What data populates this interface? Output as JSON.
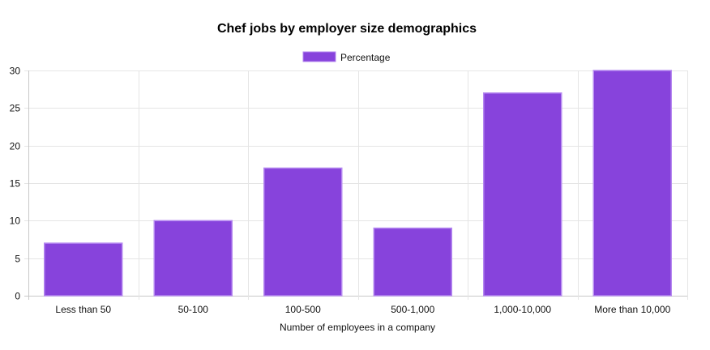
{
  "chart_data": {
    "type": "bar",
    "title": "Chef jobs by employer size demographics",
    "xlabel": "Number of employees in a company",
    "ylabel": "",
    "categories": [
      "Less than 50",
      "50-100",
      "100-500",
      "500-1,000",
      "1,000-10,000",
      "More than 10,000"
    ],
    "series": [
      {
        "name": "Percentage",
        "values": [
          7,
          10,
          17,
          9,
          27,
          30
        ],
        "color": "#8743dc",
        "border_color": "#b689f0"
      }
    ],
    "ylim": [
      0,
      30
    ],
    "yticks": [
      0,
      5,
      10,
      15,
      20,
      25,
      30
    ],
    "grid": true,
    "legend": "top-center"
  }
}
